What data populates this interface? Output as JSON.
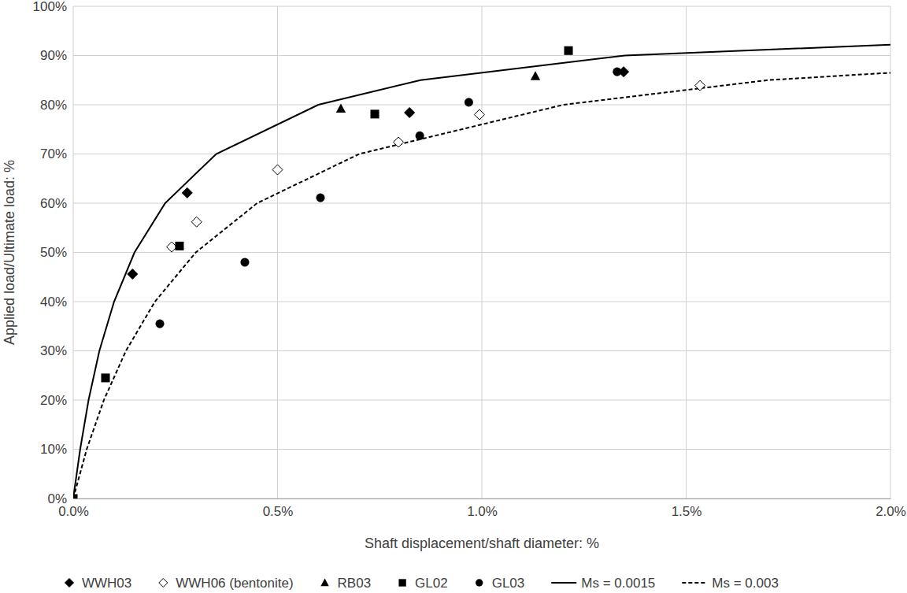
{
  "chart_data": {
    "type": "scatter",
    "x_label": "Shaft displacement/shaft diameter: %",
    "y_label": "Applied load/Ultimate load: %",
    "xlim": [
      0,
      2.0
    ],
    "ylim": [
      0,
      100
    ],
    "xticks": [
      {
        "value": 0,
        "label": "0.0%"
      },
      {
        "value": 0.5,
        "label": "0.5%"
      },
      {
        "value": 1.0,
        "label": "1.0%"
      },
      {
        "value": 1.5,
        "label": "1.5%"
      },
      {
        "value": 2.0,
        "label": "2.0%"
      }
    ],
    "yticks": [
      {
        "value": 0,
        "label": "0%"
      },
      {
        "value": 10,
        "label": "10%"
      },
      {
        "value": 20,
        "label": "20%"
      },
      {
        "value": 30,
        "label": "30%"
      },
      {
        "value": 40,
        "label": "40%"
      },
      {
        "value": 50,
        "label": "50%"
      },
      {
        "value": 60,
        "label": "60%"
      },
      {
        "value": 70,
        "label": "70%"
      },
      {
        "value": 80,
        "label": "80%"
      },
      {
        "value": 90,
        "label": "90%"
      },
      {
        "value": 100,
        "label": "100%"
      }
    ],
    "grid": true,
    "legend": "bottom",
    "series": [
      {
        "name": "WWH03",
        "type": "scatter",
        "marker": "diamond",
        "color": "#000000",
        "x": [
          0.145,
          0.279,
          0.823,
          1.347
        ],
        "values": [
          45.6,
          62.1,
          78.4,
          86.7
        ]
      },
      {
        "name": "WWH06 (bentonite)",
        "type": "scatter",
        "marker": "diamond-open",
        "color": "#000000",
        "x": [
          0.241,
          0.302,
          0.5,
          0.796,
          0.994,
          1.534
        ],
        "values": [
          51.1,
          56.2,
          66.8,
          72.4,
          78.0,
          83.9
        ]
      },
      {
        "name": "RB03",
        "type": "scatter",
        "marker": "triangle",
        "color": "#000000",
        "x": [
          0.655,
          1.131
        ],
        "values": [
          79.2,
          85.8
        ]
      },
      {
        "name": "GL02",
        "type": "scatter",
        "marker": "square",
        "color": "#000000",
        "x": [
          0,
          0.079,
          0.26,
          0.738,
          1.212
        ],
        "values": [
          0,
          24.5,
          51.3,
          78.1,
          91.0
        ]
      },
      {
        "name": "GL03",
        "type": "scatter",
        "marker": "circle",
        "color": "#000000",
        "x": [
          0.212,
          0.42,
          0.605,
          0.848,
          0.968,
          1.331
        ],
        "values": [
          35.5,
          48.0,
          61.1,
          73.7,
          80.5,
          86.7
        ]
      },
      {
        "name": "Ms = 0.0015",
        "type": "line",
        "line_style": "solid",
        "color": "#000000",
        "x": [
          0,
          0.017,
          0.0375,
          0.064,
          0.1,
          0.15,
          0.225,
          0.35,
          0.6,
          0.85,
          1.35,
          2.0
        ],
        "values": [
          0,
          10,
          20,
          30,
          40,
          50,
          60,
          70,
          80,
          85,
          90,
          92.2
        ]
      },
      {
        "name": "Ms = 0.003",
        "type": "line",
        "line_style": "dashed",
        "color": "#000000",
        "x": [
          0,
          0.033,
          0.075,
          0.129,
          0.2,
          0.3,
          0.45,
          0.7,
          1.2,
          1.7,
          2.0
        ],
        "values": [
          0,
          10,
          20,
          30,
          40,
          50,
          60,
          70,
          80,
          85,
          86.5
        ]
      }
    ]
  }
}
